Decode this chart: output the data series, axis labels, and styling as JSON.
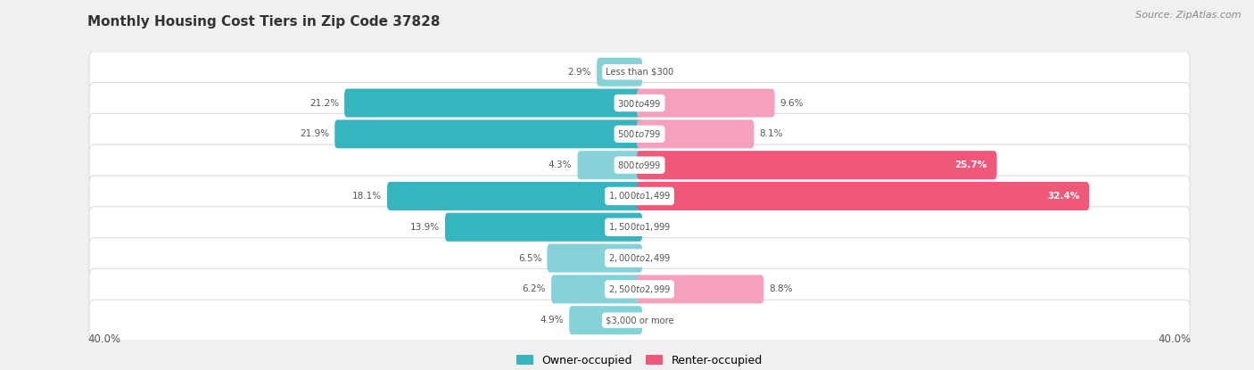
{
  "title": "Monthly Housing Cost Tiers in Zip Code 37828",
  "source": "Source: ZipAtlas.com",
  "categories": [
    "Less than $300",
    "$300 to $499",
    "$500 to $799",
    "$800 to $999",
    "$1,000 to $1,499",
    "$1,500 to $1,999",
    "$2,000 to $2,499",
    "$2,500 to $2,999",
    "$3,000 or more"
  ],
  "owner_values": [
    2.9,
    21.2,
    21.9,
    4.3,
    18.1,
    13.9,
    6.5,
    6.2,
    4.9
  ],
  "renter_values": [
    0.0,
    9.6,
    8.1,
    25.7,
    32.4,
    0.0,
    0.0,
    8.8,
    0.0
  ],
  "owner_color_dark": "#35b5be",
  "owner_color_light": "#85d3d8",
  "renter_color_dark": "#f0587a",
  "renter_color_light": "#f5a0bc",
  "bg_color": "#f0f0f0",
  "row_bg_light": "#fafafa",
  "row_bg_dark": "#f0f0f0",
  "axis_limit": 40.0,
  "label_color": "#555555",
  "title_color": "#333333",
  "legend_owner_label": "Owner-occupied",
  "legend_renter_label": "Renter-occupied",
  "dark_owner_thresh": 12.0,
  "dark_renter_thresh": 15.0
}
